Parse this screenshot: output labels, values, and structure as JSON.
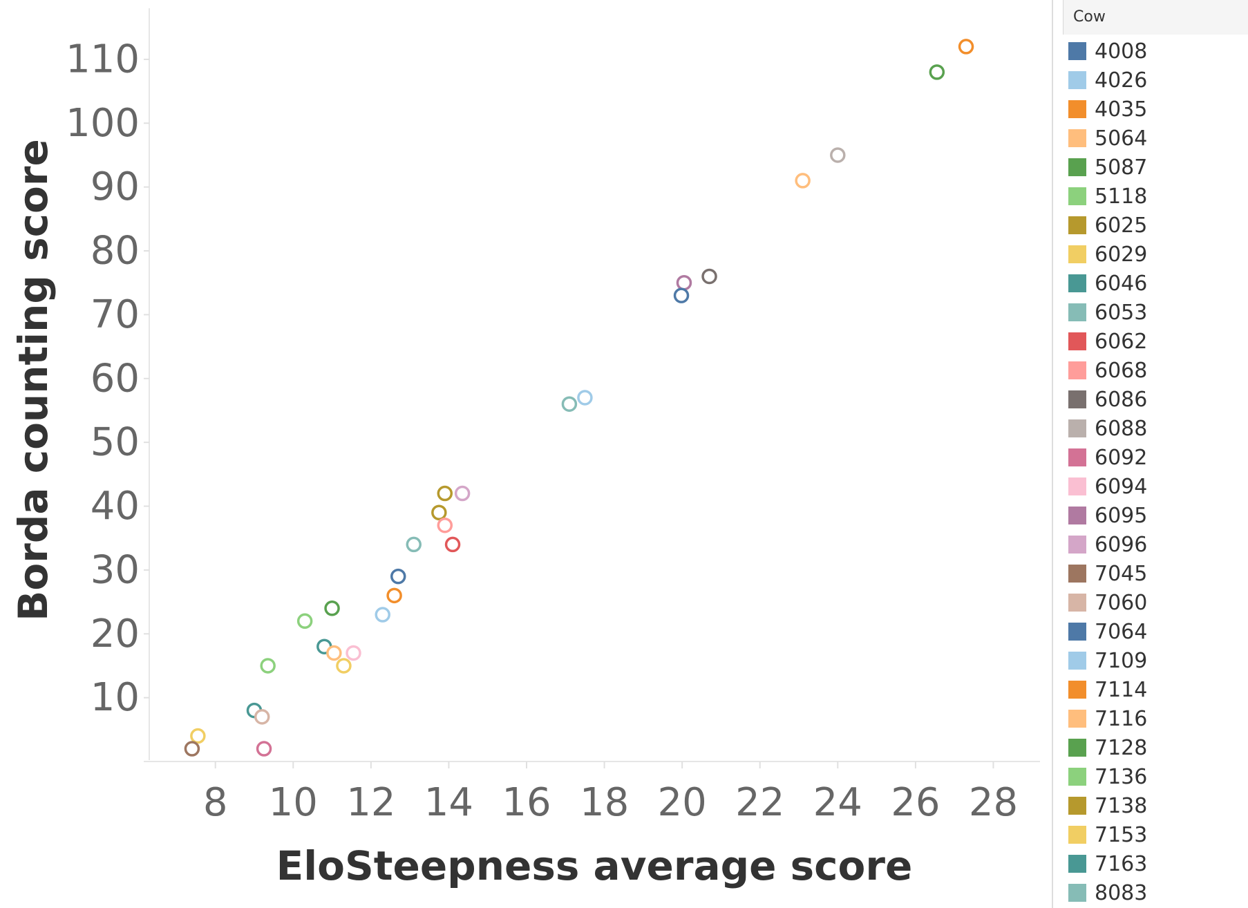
{
  "chart_data": {
    "type": "scatter",
    "xlabel": "EloSteepness average score",
    "ylabel": "Borda counting score",
    "xlim": [
      6.3,
      29.2
    ],
    "ylim": [
      0,
      118
    ],
    "x_ticks": [
      8,
      10,
      12,
      14,
      16,
      18,
      20,
      22,
      24,
      26,
      28
    ],
    "y_ticks": [
      10,
      20,
      30,
      40,
      50,
      60,
      70,
      80,
      90,
      100,
      110
    ],
    "grid": false,
    "marker": "hollow-circle",
    "legend": {
      "title": "Cow",
      "placement": "right",
      "entries": [
        {
          "label": "4008",
          "color": "#4e79a7"
        },
        {
          "label": "4026",
          "color": "#a0cbe8"
        },
        {
          "label": "4035",
          "color": "#f28e2b"
        },
        {
          "label": "5064",
          "color": "#ffbe7d"
        },
        {
          "label": "5087",
          "color": "#59a14f"
        },
        {
          "label": "5118",
          "color": "#8cd17d"
        },
        {
          "label": "6025",
          "color": "#b6992d"
        },
        {
          "label": "6029",
          "color": "#f1ce63"
        },
        {
          "label": "6046",
          "color": "#499894"
        },
        {
          "label": "6053",
          "color": "#86bcb6"
        },
        {
          "label": "6062",
          "color": "#e15759"
        },
        {
          "label": "6068",
          "color": "#ff9d9a"
        },
        {
          "label": "6086",
          "color": "#79706e"
        },
        {
          "label": "6088",
          "color": "#bab0ac"
        },
        {
          "label": "6092",
          "color": "#d37295"
        },
        {
          "label": "6094",
          "color": "#fabfd2"
        },
        {
          "label": "6095",
          "color": "#b07aa1"
        },
        {
          "label": "6096",
          "color": "#d4a6c8"
        },
        {
          "label": "7045",
          "color": "#9d7660"
        },
        {
          "label": "7060",
          "color": "#d7b5a6"
        },
        {
          "label": "7064",
          "color": "#4e79a7"
        },
        {
          "label": "7109",
          "color": "#a0cbe8"
        },
        {
          "label": "7114",
          "color": "#f28e2b"
        },
        {
          "label": "7116",
          "color": "#ffbe7d"
        },
        {
          "label": "7128",
          "color": "#59a14f"
        },
        {
          "label": "7136",
          "color": "#8cd17d"
        },
        {
          "label": "7138",
          "color": "#b6992d"
        },
        {
          "label": "7153",
          "color": "#f1ce63"
        },
        {
          "label": "7163",
          "color": "#499894"
        },
        {
          "label": "8083",
          "color": "#86bcb6"
        }
      ]
    },
    "points": [
      {
        "x": 27.3,
        "y": 112,
        "color": "#f28e2b"
      },
      {
        "x": 26.55,
        "y": 108,
        "color": "#59a14f"
      },
      {
        "x": 24.0,
        "y": 95,
        "color": "#bab0ac"
      },
      {
        "x": 23.1,
        "y": 91,
        "color": "#ffbe7d"
      },
      {
        "x": 20.7,
        "y": 76,
        "color": "#79706e"
      },
      {
        "x": 20.05,
        "y": 75,
        "color": "#b07aa1"
      },
      {
        "x": 19.98,
        "y": 73,
        "color": "#4e79a7"
      },
      {
        "x": 17.5,
        "y": 57,
        "color": "#a0cbe8"
      },
      {
        "x": 17.1,
        "y": 56,
        "color": "#86bcb6"
      },
      {
        "x": 14.35,
        "y": 42,
        "color": "#d4a6c8"
      },
      {
        "x": 13.9,
        "y": 42,
        "color": "#b6992d"
      },
      {
        "x": 13.75,
        "y": 39,
        "color": "#b6992d"
      },
      {
        "x": 13.9,
        "y": 37,
        "color": "#ff9d9a"
      },
      {
        "x": 14.1,
        "y": 34,
        "color": "#e15759"
      },
      {
        "x": 13.1,
        "y": 34,
        "color": "#86bcb6"
      },
      {
        "x": 12.7,
        "y": 29,
        "color": "#4e79a7"
      },
      {
        "x": 12.6,
        "y": 26,
        "color": "#f28e2b"
      },
      {
        "x": 12.3,
        "y": 23,
        "color": "#a0cbe8"
      },
      {
        "x": 11.0,
        "y": 24,
        "color": "#59a14f"
      },
      {
        "x": 10.3,
        "y": 22,
        "color": "#8cd17d"
      },
      {
        "x": 10.8,
        "y": 18,
        "color": "#499894"
      },
      {
        "x": 11.05,
        "y": 17,
        "color": "#ffbe7d"
      },
      {
        "x": 11.55,
        "y": 17,
        "color": "#fabfd2"
      },
      {
        "x": 11.3,
        "y": 15,
        "color": "#f1ce63"
      },
      {
        "x": 9.35,
        "y": 15,
        "color": "#8cd17d"
      },
      {
        "x": 9.0,
        "y": 8,
        "color": "#499894"
      },
      {
        "x": 9.2,
        "y": 7,
        "color": "#d7b5a6"
      },
      {
        "x": 9.25,
        "y": 2,
        "color": "#d37295"
      },
      {
        "x": 7.55,
        "y": 4,
        "color": "#f1ce63"
      },
      {
        "x": 7.4,
        "y": 2,
        "color": "#9d7660"
      }
    ]
  }
}
